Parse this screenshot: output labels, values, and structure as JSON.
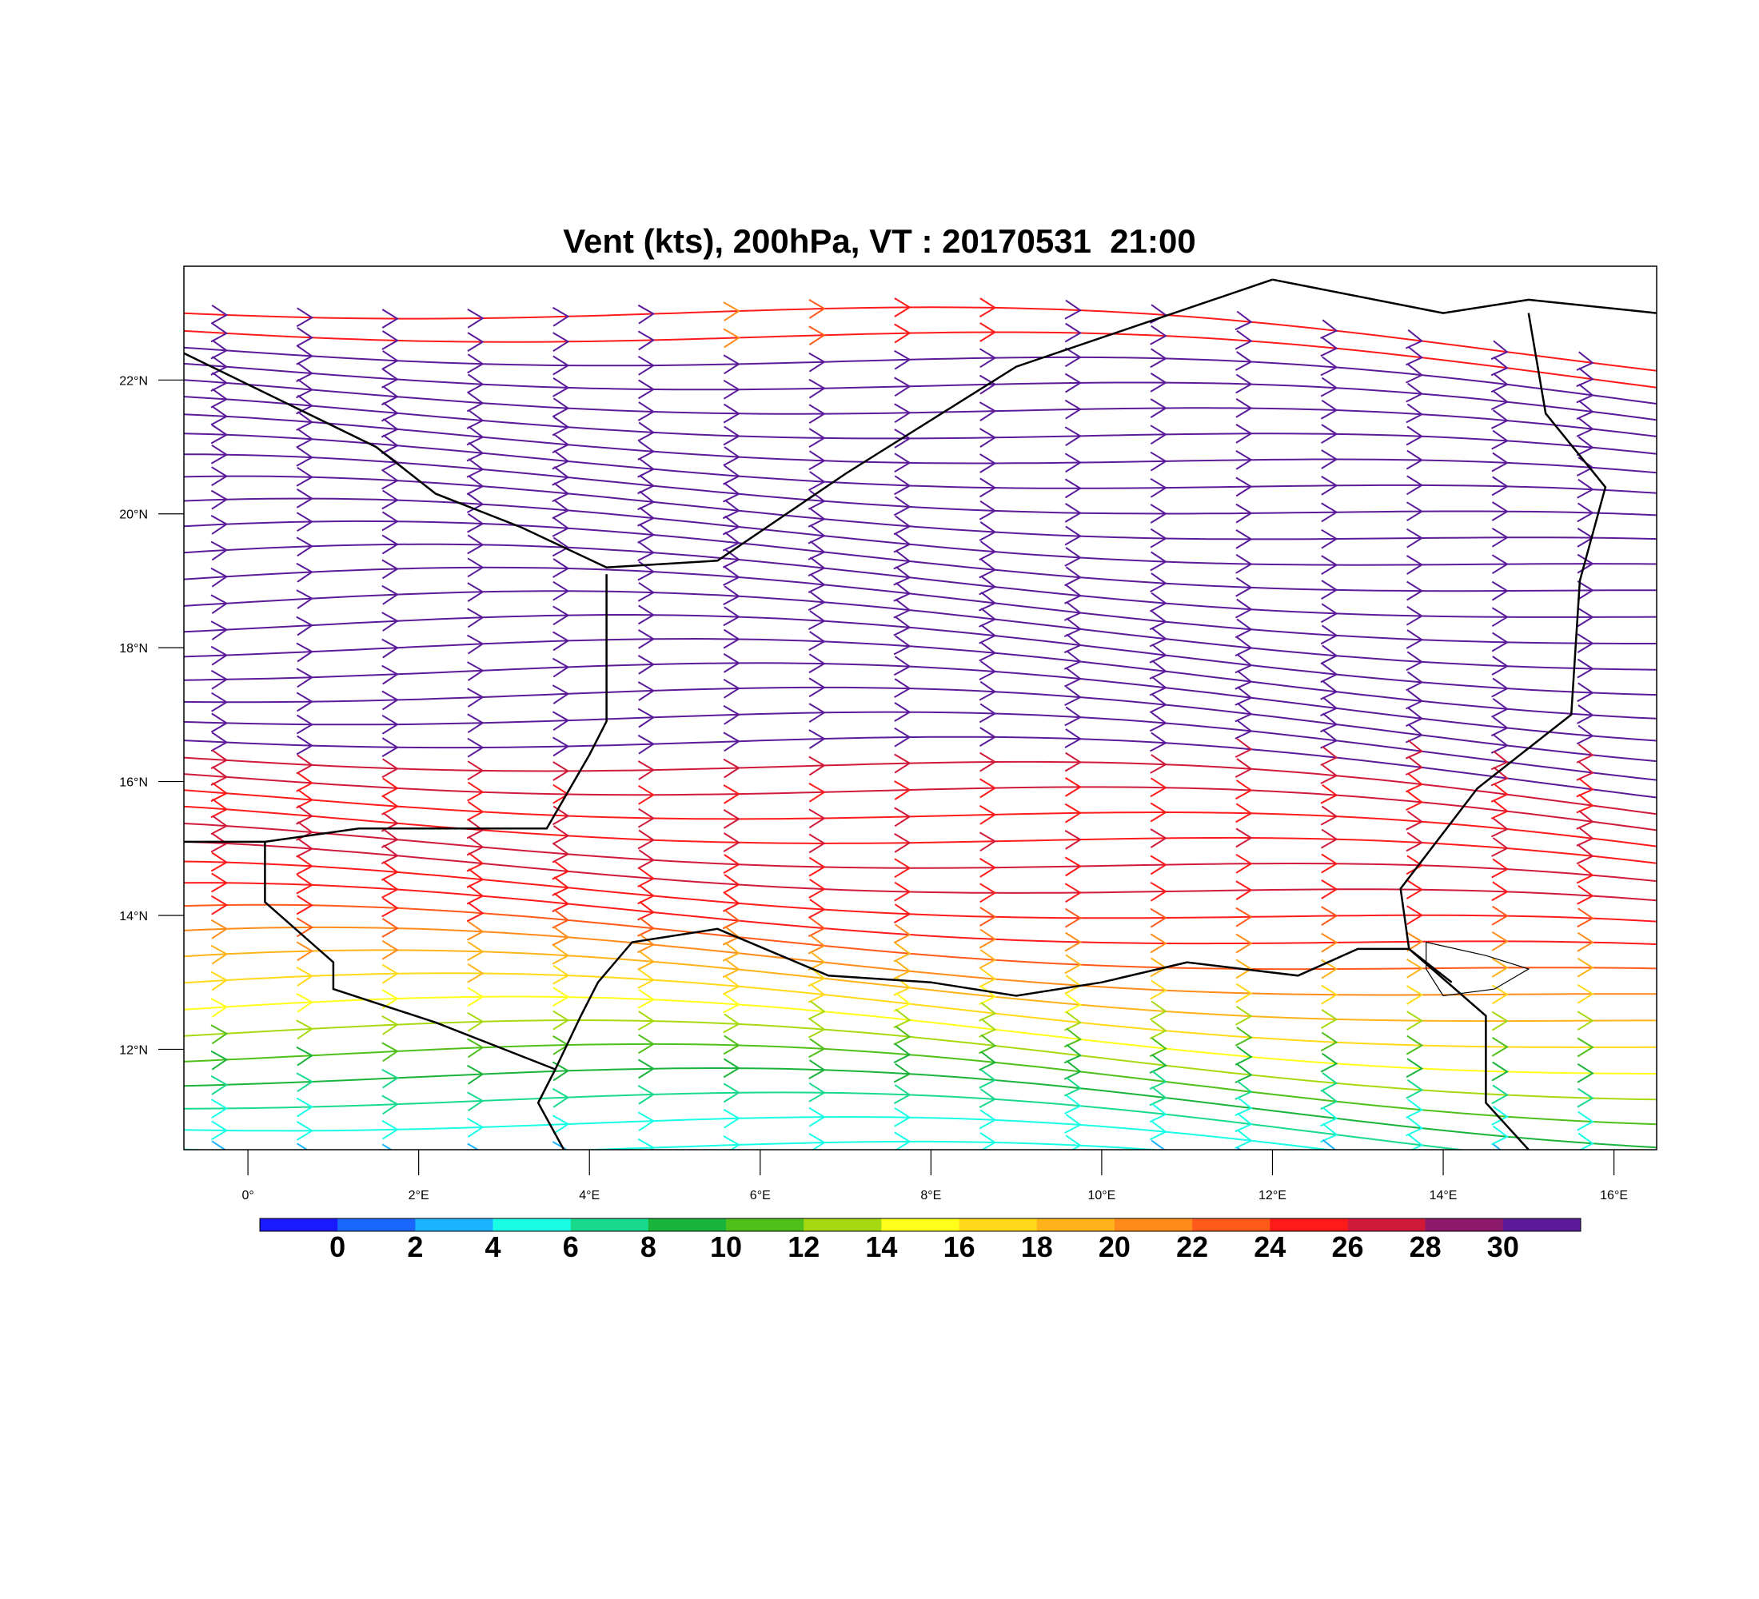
{
  "title": "Vent (kts), 200hPa, VT : 20170531  21:00",
  "map": {
    "projection": "lat-lon",
    "lon_range": [
      -0.75,
      16.5
    ],
    "lat_range": [
      10.5,
      23.7
    ],
    "lon_ticks": [
      {
        "value": 0,
        "label": "0°"
      },
      {
        "value": 2,
        "label": "2°E"
      },
      {
        "value": 4,
        "label": "4°E"
      },
      {
        "value": 6,
        "label": "6°E"
      },
      {
        "value": 8,
        "label": "8°E"
      },
      {
        "value": 10,
        "label": "10°E"
      },
      {
        "value": 12,
        "label": "12°E"
      },
      {
        "value": 14,
        "label": "14°E"
      },
      {
        "value": 16,
        "label": "16°E"
      }
    ],
    "lat_ticks": [
      {
        "value": 12,
        "label": "12°N"
      },
      {
        "value": 14,
        "label": "14°N"
      },
      {
        "value": 16,
        "label": "16°N"
      },
      {
        "value": 18,
        "label": "18°N"
      },
      {
        "value": 20,
        "label": "20°N"
      },
      {
        "value": 22,
        "label": "22°N"
      }
    ],
    "feature": "wind streamlines with arrowheads colored by speed (kts)",
    "borders": [
      {
        "name": "Algeria-Niger",
        "points": [
          [
            -0.75,
            22.4
          ],
          [
            1.5,
            21.0
          ],
          [
            2.2,
            20.3
          ],
          [
            3.2,
            19.8
          ],
          [
            4.2,
            19.2
          ],
          [
            5.5,
            19.3
          ],
          [
            7.0,
            20.6
          ],
          [
            9.0,
            22.2
          ],
          [
            12.0,
            23.5
          ]
        ]
      },
      {
        "name": "Libya-Chad",
        "points": [
          [
            12.0,
            23.5
          ],
          [
            14.0,
            23.0
          ],
          [
            15.0,
            23.2
          ],
          [
            16.5,
            23.0
          ]
        ]
      },
      {
        "name": "Niger-Chad",
        "points": [
          [
            15.0,
            23.0
          ],
          [
            15.2,
            21.5
          ],
          [
            15.9,
            20.4
          ],
          [
            15.6,
            19.0
          ],
          [
            15.5,
            17.0
          ],
          [
            14.4,
            15.9
          ],
          [
            13.5,
            14.4
          ],
          [
            13.6,
            13.5
          ],
          [
            14.1,
            13.0
          ]
        ]
      },
      {
        "name": "Mali-Niger",
        "points": [
          [
            4.2,
            19.1
          ],
          [
            4.2,
            16.9
          ],
          [
            4.0,
            16.4
          ],
          [
            3.5,
            15.3
          ],
          [
            1.3,
            15.3
          ],
          [
            0.2,
            15.1
          ],
          [
            -0.75,
            15.1
          ]
        ]
      },
      {
        "name": "Niger-Nigeria",
        "points": [
          [
            3.6,
            11.7
          ],
          [
            3.9,
            12.5
          ],
          [
            4.1,
            13.0
          ],
          [
            4.5,
            13.6
          ],
          [
            5.5,
            13.8
          ],
          [
            6.8,
            13.1
          ],
          [
            8.0,
            13.0
          ],
          [
            9.0,
            12.8
          ],
          [
            10.0,
            13.0
          ],
          [
            11.0,
            13.3
          ],
          [
            12.3,
            13.1
          ],
          [
            13.0,
            13.5
          ],
          [
            13.6,
            13.5
          ]
        ]
      },
      {
        "name": "Niger-Benin-Burkina",
        "points": [
          [
            0.2,
            15.1
          ],
          [
            0.2,
            14.2
          ],
          [
            1.0,
            13.3
          ],
          [
            1.0,
            12.9
          ],
          [
            2.2,
            12.4
          ],
          [
            3.6,
            11.7
          ],
          [
            3.4,
            11.2
          ],
          [
            3.7,
            10.5
          ]
        ]
      },
      {
        "name": "Nigeria-Cameroon",
        "points": [
          [
            13.6,
            13.5
          ],
          [
            14.5,
            12.5
          ],
          [
            14.5,
            11.2
          ],
          [
            15.0,
            10.5
          ]
        ]
      }
    ],
    "lakes": [
      {
        "name": "Lake Chad",
        "points": [
          [
            13.8,
            13.6
          ],
          [
            14.5,
            13.4
          ],
          [
            15.0,
            13.2
          ],
          [
            14.6,
            12.9
          ],
          [
            14.0,
            12.8
          ],
          [
            13.8,
            13.2
          ]
        ]
      }
    ]
  },
  "legend": {
    "type": "colorbar",
    "units": "kts",
    "labels": [
      "0",
      "2",
      "4",
      "6",
      "8",
      "10",
      "12",
      "14",
      "16",
      "18",
      "20",
      "22",
      "24",
      "26",
      "28",
      "30"
    ],
    "colors": [
      "#1a1aff",
      "#1a66ff",
      "#19b3ff",
      "#19ffe6",
      "#19d98c",
      "#1ab33c",
      "#4fbf1a",
      "#a6d910",
      "#ffff1a",
      "#ffd91a",
      "#ffb31a",
      "#ff8c1a",
      "#ff5a1a",
      "#ff1a1a",
      "#d01a3a",
      "#8c1a6b",
      "#5a1a99"
    ]
  }
}
